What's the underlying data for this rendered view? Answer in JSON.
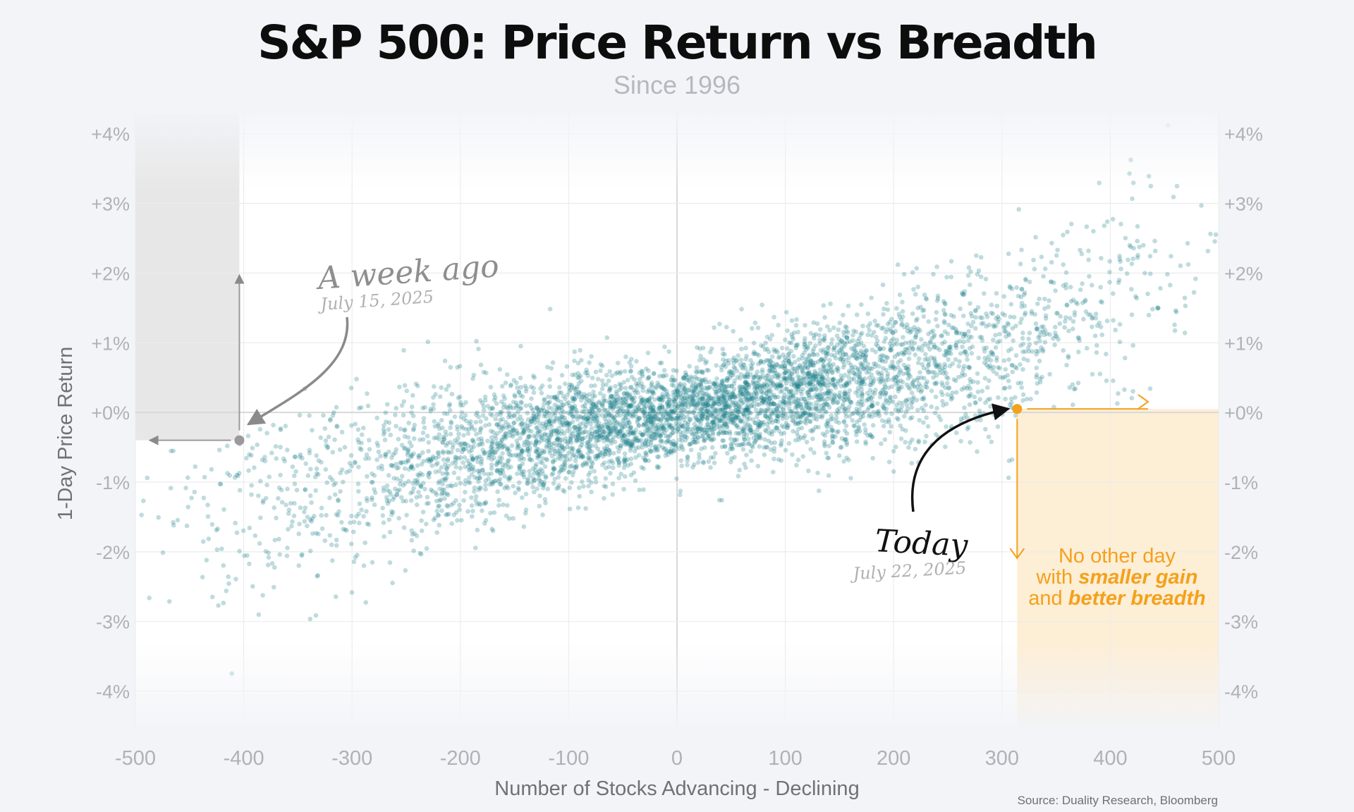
{
  "title": "S&P 500: Price Return vs Breadth",
  "subtitle": "Since 1996",
  "source": "Source: Duality Research, Bloomberg",
  "colors": {
    "points": "#1a7f8a",
    "today": "#f4a11c",
    "week_ago": "#9a9a9a",
    "shade_left": "#e7e7e7",
    "shade_right": "#fdeed6"
  },
  "chart_data": {
    "type": "scatter",
    "title": "S&P 500: Price Return vs Breadth",
    "subtitle": "Since 1996",
    "xlabel": "Number of Stocks Advancing - Declining",
    "ylabel": "1-Day Price Return",
    "xlim": [
      -500,
      500
    ],
    "ylim": [
      -4.5,
      4.3
    ],
    "x_ticks": [
      -500,
      -400,
      -300,
      -200,
      -100,
      0,
      100,
      200,
      300,
      400,
      500
    ],
    "x_tick_labels": [
      "-500",
      "-400",
      "-300",
      "-200",
      "-100",
      "0",
      "100",
      "200",
      "300",
      "400",
      "500"
    ],
    "y_ticks": [
      4,
      3,
      2,
      1,
      0,
      -1,
      -2,
      -3,
      -4
    ],
    "y_tick_labels": [
      "+4%",
      "+3%",
      "+2%",
      "+1%",
      "+0%",
      "-1%",
      "-2%",
      "-3%",
      "-4%"
    ],
    "grid": true,
    "series_summary": "Approx. 7,400 daily observations; return rises roughly linearly with breadth (~0.0033% per net advancer), wider dispersion at extremes.",
    "trend": [
      {
        "x": -500,
        "y": -2.0
      },
      {
        "x": -400,
        "y": -1.35
      },
      {
        "x": -300,
        "y": -1.0
      },
      {
        "x": -200,
        "y": -0.6
      },
      {
        "x": -100,
        "y": -0.25
      },
      {
        "x": 0,
        "y": 0.0
      },
      {
        "x": 100,
        "y": 0.25
      },
      {
        "x": 200,
        "y": 0.55
      },
      {
        "x": 300,
        "y": 0.9
      },
      {
        "x": 400,
        "y": 1.45
      },
      {
        "x": 500,
        "y": 2.4
      }
    ],
    "highlights": [
      {
        "name": "week_ago",
        "x": -404,
        "y": -0.4
      },
      {
        "name": "today",
        "x": 314,
        "y": 0.05
      }
    ],
    "annotations": {
      "week_ago": {
        "title": "A week ago",
        "date": "July 15, 2025"
      },
      "today": {
        "title": "Today",
        "date": "July 22, 2025"
      },
      "note": {
        "line1": "No other day",
        "line2_prefix": "with ",
        "line2_bold": "smaller gain",
        "line3_prefix": "and ",
        "line3_bold": "better breadth"
      }
    }
  }
}
